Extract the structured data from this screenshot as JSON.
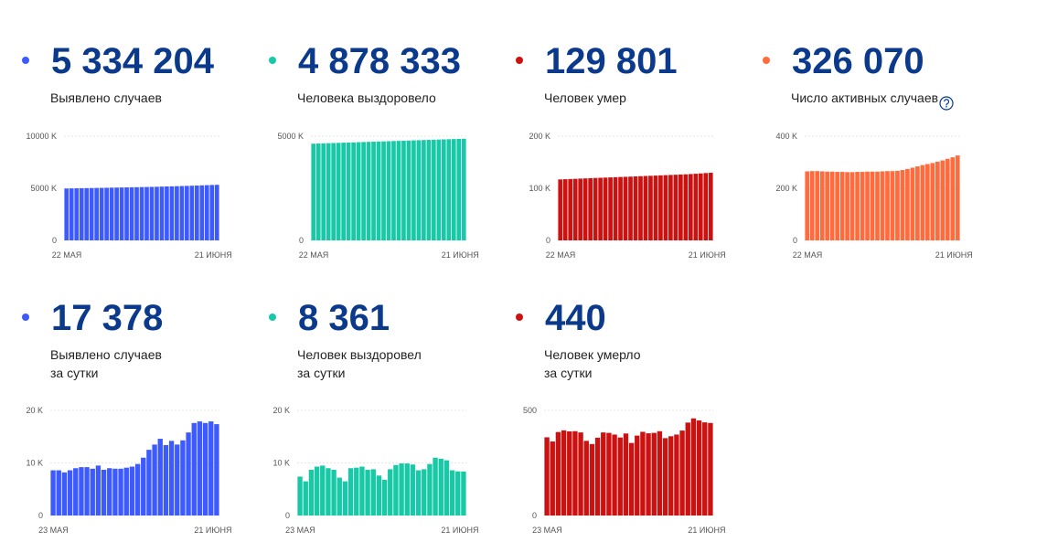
{
  "chart_data": [
    {
      "type": "bar",
      "headline": "5 334 204",
      "label": [
        "Выявлено случаев"
      ],
      "color": "#3d5afe",
      "categories": [
        "22 МАЯ",
        null,
        null,
        null,
        null,
        null,
        null,
        null,
        null,
        null,
        null,
        null,
        null,
        null,
        null,
        null,
        null,
        null,
        null,
        null,
        null,
        null,
        null,
        null,
        null,
        null,
        null,
        null,
        null,
        null,
        "21 ИЮНЯ"
      ],
      "values": [
        4980,
        4989,
        4997,
        5005,
        5014,
        5023,
        5032,
        5041,
        5050,
        5060,
        5069,
        5078,
        5086,
        5095,
        5104,
        5114,
        5124,
        5135,
        5147,
        5161,
        5175,
        5189,
        5203,
        5216,
        5231,
        5246,
        5264,
        5282,
        5299,
        5317,
        5334
      ],
      "ylim": [
        0,
        10000
      ],
      "yticks": [
        0,
        {
          "value": 5000,
          "label": "5000 K"
        },
        {
          "value": 10000,
          "label": "10000 K"
        }
      ]
    },
    {
      "type": "bar",
      "headline": "4 878 333",
      "label": [
        "Человека выздоровело"
      ],
      "color": "#17c9a6",
      "categories": [
        "22 МАЯ",
        null,
        null,
        null,
        null,
        null,
        null,
        null,
        null,
        null,
        null,
        null,
        null,
        null,
        null,
        null,
        null,
        null,
        null,
        null,
        null,
        null,
        null,
        null,
        null,
        null,
        null,
        null,
        null,
        null,
        "21 ИЮНЯ"
      ],
      "values": [
        4640,
        4648,
        4656,
        4664,
        4672,
        4680,
        4688,
        4696,
        4703,
        4711,
        4719,
        4727,
        4735,
        4743,
        4751,
        4759,
        4767,
        4775,
        4783,
        4791,
        4799,
        4807,
        4815,
        4822,
        4830,
        4838,
        4846,
        4854,
        4862,
        4870,
        4878
      ],
      "ylim": [
        0,
        5000
      ],
      "yticks": [
        0,
        {
          "value": 5000,
          "label": "5000 K"
        }
      ]
    },
    {
      "type": "bar",
      "headline": "129 801",
      "label": [
        "Человек умер"
      ],
      "color": "#cc1111",
      "categories": [
        "22 МАЯ",
        null,
        null,
        null,
        null,
        null,
        null,
        null,
        null,
        null,
        null,
        null,
        null,
        null,
        null,
        null,
        null,
        null,
        null,
        null,
        null,
        null,
        null,
        null,
        null,
        null,
        null,
        null,
        null,
        null,
        "21 ИЮНЯ"
      ],
      "values": [
        117.0,
        117.4,
        117.8,
        118.2,
        118.6,
        119.0,
        119.4,
        119.8,
        120.2,
        120.5,
        120.9,
        121.3,
        121.7,
        122.0,
        122.4,
        122.8,
        123.2,
        123.6,
        124.0,
        124.4,
        124.8,
        125.2,
        125.6,
        126.0,
        126.4,
        126.8,
        127.3,
        127.9,
        128.5,
        129.2,
        129.8
      ],
      "ylim": [
        0,
        200
      ],
      "yticks": [
        0,
        {
          "value": 100,
          "label": "100 K"
        },
        {
          "value": 200,
          "label": "200 K"
        }
      ]
    },
    {
      "type": "bar",
      "headline": "326 070",
      "label": [
        "Число активных случаев"
      ],
      "color": "#ff6b3d",
      "categories": [
        "22 МАЯ",
        null,
        null,
        null,
        null,
        null,
        null,
        null,
        null,
        null,
        null,
        null,
        null,
        null,
        null,
        null,
        null,
        null,
        null,
        null,
        null,
        null,
        null,
        null,
        null,
        null,
        null,
        null,
        null,
        null,
        "21 ИЮНЯ"
      ],
      "values": [
        265,
        266,
        266,
        265,
        264,
        264,
        263,
        263,
        262,
        262,
        263,
        263,
        264,
        264,
        264,
        265,
        266,
        266,
        267,
        270,
        274,
        279,
        284,
        289,
        293,
        297,
        302,
        307,
        313,
        319,
        326
      ],
      "ylim": [
        0,
        400
      ],
      "yticks": [
        0,
        {
          "value": 200,
          "label": "200 K"
        },
        {
          "value": 400,
          "label": "400 K"
        }
      ]
    },
    {
      "type": "bar",
      "headline": "17 378",
      "label": [
        "Выявлено случаев",
        "за сутки"
      ],
      "color": "#3d5afe",
      "categories": [
        "23 МАЯ",
        null,
        null,
        null,
        null,
        null,
        null,
        null,
        null,
        null,
        null,
        null,
        null,
        null,
        null,
        null,
        null,
        null,
        null,
        null,
        null,
        null,
        null,
        null,
        null,
        null,
        null,
        null,
        null,
        "21 ИЮНЯ"
      ],
      "values": [
        8.6,
        8.6,
        8.2,
        8.6,
        9,
        9.2,
        9.2,
        8.9,
        9.5,
        8.7,
        9,
        8.9,
        8.9,
        9.1,
        9.3,
        9.8,
        11,
        12.5,
        13.5,
        14.6,
        13.4,
        14.2,
        13.5,
        14.3,
        15.8,
        17.6,
        17.9,
        17.6,
        17.9,
        17.378
      ],
      "ylim": [
        0,
        20
      ],
      "yticks": [
        0,
        {
          "value": 10,
          "label": "10 K"
        },
        {
          "value": 20,
          "label": "20 K"
        }
      ]
    },
    {
      "type": "bar",
      "headline": "8 361",
      "label": [
        "Человек выздоровел",
        "за сутки"
      ],
      "color": "#17c9a6",
      "categories": [
        "23 МАЯ",
        null,
        null,
        null,
        null,
        null,
        null,
        null,
        null,
        null,
        null,
        null,
        null,
        null,
        null,
        null,
        null,
        null,
        null,
        null,
        null,
        null,
        null,
        null,
        null,
        null,
        null,
        null,
        null,
        "21 ИЮНЯ"
      ],
      "values": [
        7.4,
        6.5,
        8.7,
        9.3,
        9.5,
        9,
        8.7,
        7.2,
        6.5,
        9,
        9.1,
        9.3,
        8.7,
        8.8,
        7.6,
        6.8,
        8.8,
        9.6,
        9.9,
        9.9,
        9.7,
        8.6,
        8.8,
        9.8,
        11,
        10.8,
        10.5,
        8.6,
        8.4,
        8.361
      ],
      "ylim": [
        0,
        20
      ],
      "yticks": [
        0,
        {
          "value": 10,
          "label": "10 K"
        },
        {
          "value": 20,
          "label": "20 K"
        }
      ]
    },
    {
      "type": "bar",
      "headline": "440",
      "label": [
        "Человек умерло",
        "за сутки"
      ],
      "color": "#cc1111",
      "categories": [
        "23 МАЯ",
        null,
        null,
        null,
        null,
        null,
        null,
        null,
        null,
        null,
        null,
        null,
        null,
        null,
        null,
        null,
        null,
        null,
        null,
        null,
        null,
        null,
        null,
        null,
        null,
        null,
        null,
        null,
        null,
        "21 ИЮНЯ"
      ],
      "values": [
        372,
        352,
        397,
        405,
        400,
        401,
        395,
        355,
        340,
        370,
        395,
        393,
        385,
        371,
        390,
        345,
        380,
        398,
        391,
        393,
        401,
        368,
        377,
        385,
        404,
        442,
        462,
        452,
        443,
        440
      ],
      "ylim": [
        0,
        500
      ],
      "yticks": [
        0,
        500
      ]
    }
  ]
}
